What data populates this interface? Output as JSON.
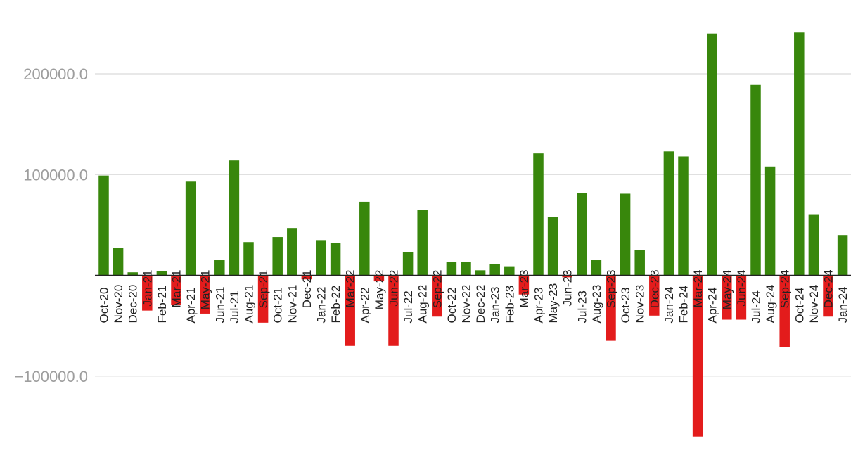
{
  "chart_data": {
    "type": "bar",
    "title": "",
    "xlabel": "",
    "ylabel": "",
    "ylim": [
      -160000,
      240000
    ],
    "y_ticks": [
      {
        "value": 200000,
        "label": "200000.0"
      },
      {
        "value": 100000,
        "label": "100000.0"
      },
      {
        "value": -100000,
        "label": "−100000.0"
      }
    ],
    "grid": true,
    "legend": "none",
    "colors": {
      "positive": "#38870c",
      "negative": "#e31c1c",
      "grid": "#e0e0e0",
      "axis": "#222222"
    },
    "categories": [
      "Oct-20",
      "Nov-20",
      "Dec-20",
      "Jan-21",
      "Feb-21",
      "Mar-21",
      "Apr-21",
      "May-21",
      "Jun-21",
      "Jul-21",
      "Aug-21",
      "Sep-21",
      "Oct-21",
      "Nov-21",
      "Dec-21",
      "Jan-22",
      "Feb-22",
      "Mar-22",
      "Apr-22",
      "May-22",
      "Jun-22",
      "Jul-22",
      "Aug-22",
      "Sep-22",
      "Oct-22",
      "Nov-22",
      "Dec-22",
      "Jan-23",
      "Feb-23",
      "Mar-23",
      "Apr-23",
      "May-23",
      "Jun-23",
      "Jul-23",
      "Aug-23",
      "Sep-23",
      "Oct-23",
      "Nov-23",
      "Dec-23",
      "Jan-24",
      "Feb-24",
      "Mar-24",
      "Apr-24",
      "May-24",
      "Jun-24",
      "Jul-24",
      "Aug-24",
      "Sep-24",
      "Oct-24",
      "Nov-24",
      "Dec-24",
      "Jan-24"
    ],
    "values": [
      99000,
      27000,
      3000,
      -35000,
      4000,
      -29000,
      93000,
      -38000,
      15000,
      114000,
      33000,
      -47000,
      38000,
      47000,
      -4000,
      35000,
      32000,
      -70000,
      73000,
      -6000,
      -70000,
      23000,
      65000,
      -41000,
      13000,
      13000,
      5000,
      11000,
      9000,
      -19000,
      121000,
      58000,
      -2000,
      82000,
      15000,
      -65000,
      81000,
      25000,
      -40000,
      123000,
      118000,
      -160000,
      240000,
      -44000,
      -44000,
      189000,
      108000,
      -71000,
      241000,
      60000,
      -41000,
      40000
    ]
  }
}
